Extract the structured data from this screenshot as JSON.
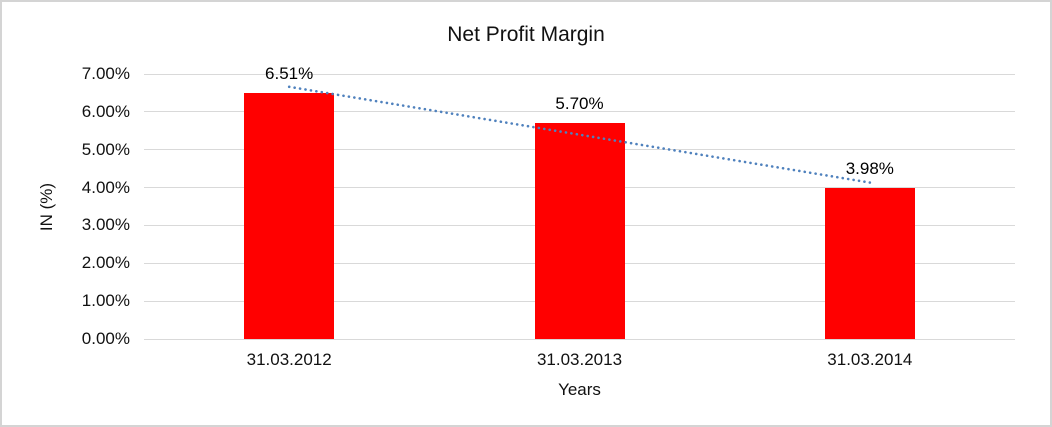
{
  "chart_data": {
    "type": "bar",
    "title": "Net Profit Margin",
    "categories": [
      "31.03.2012",
      "31.03.2013",
      "31.03.2014"
    ],
    "values": [
      6.51,
      5.7,
      3.98
    ],
    "data_labels": [
      "6.51%",
      "5.70%",
      "3.98%"
    ],
    "xlabel": "Years",
    "ylabel": "IN (%)",
    "ylim": [
      0,
      7
    ],
    "ytick_step": 1,
    "ytick_labels": [
      "0.00%",
      "1.00%",
      "2.00%",
      "3.00%",
      "4.00%",
      "5.00%",
      "6.00%",
      "7.00%"
    ],
    "grid": true,
    "legend": "none",
    "colors": {
      "bar": "#ff0000",
      "trendline": "#4f81bd",
      "gridline": "#d9d9d9",
      "text": "#111111",
      "frame_border": "#d4d4d4",
      "background": "#ffffff"
    },
    "trendline": {
      "type": "linear",
      "style": "dotted"
    }
  }
}
